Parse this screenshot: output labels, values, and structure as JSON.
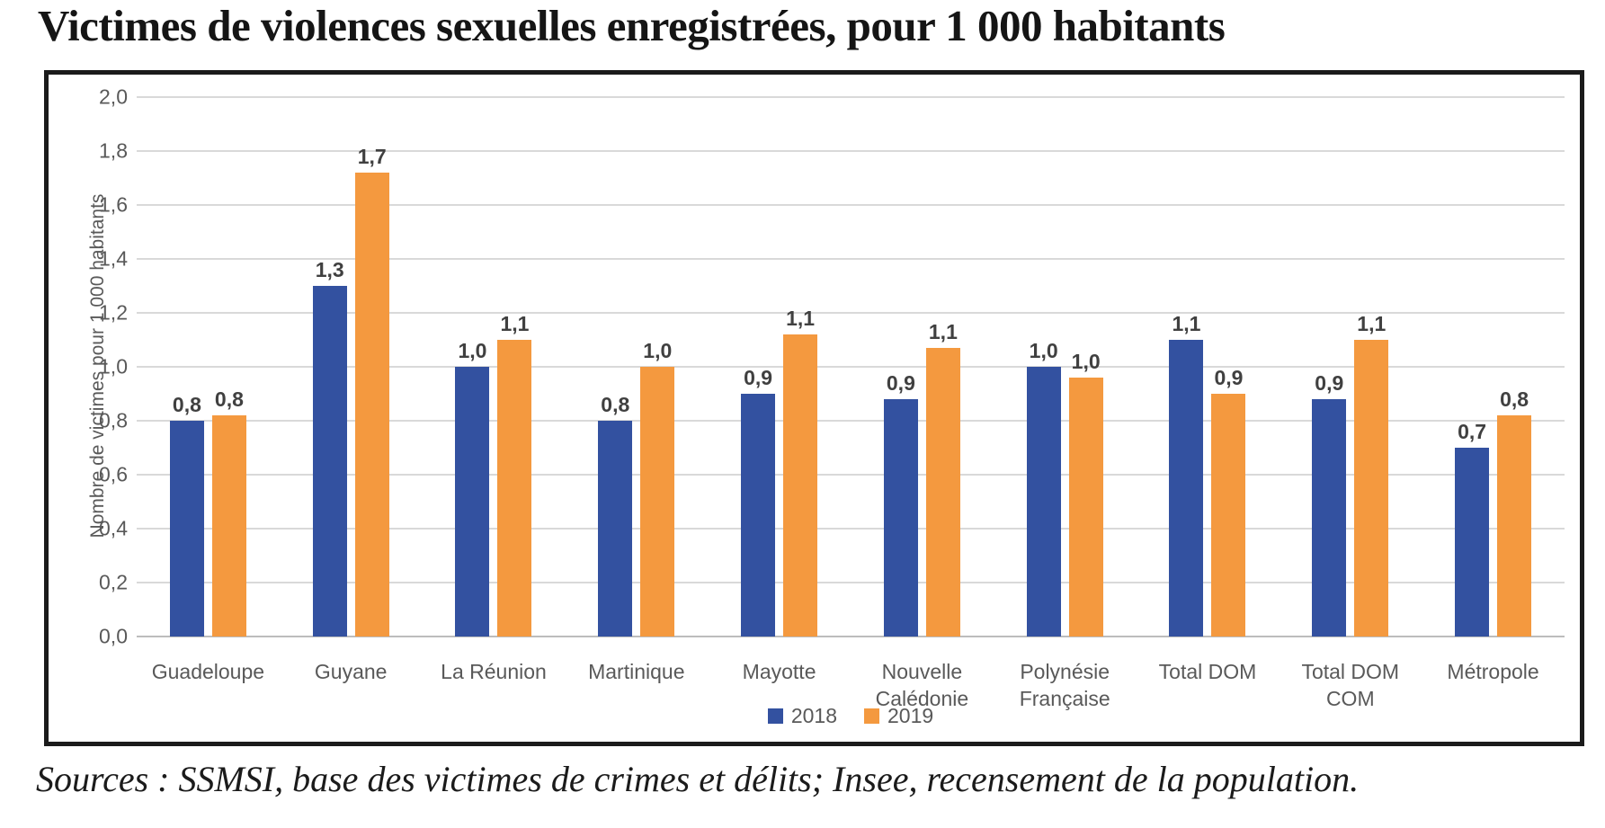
{
  "page": {
    "title": "Victimes de violences sexuelles enregistrées, pour 1 000 habitants",
    "source": "Sources : SSMSI, base des victimes de crimes et délits; Insee, recensement de la population."
  },
  "colors": {
    "series_2018": "#3351a0",
    "series_2019": "#f4993f",
    "gridline": "#d9d9d9",
    "axis_text": "#595959",
    "data_label": "#404040",
    "border": "#1b1b1b"
  },
  "chart_data": {
    "type": "bar",
    "title": "Victimes de violences sexuelles enregistrées, pour 1 000 habitants",
    "xlabel": "",
    "ylabel": "Nombre de victimes pour 1 000 habitants",
    "ylim": [
      0.0,
      2.0
    ],
    "ytick_step": 0.2,
    "ytick_labels": [
      "2,0",
      "1,8",
      "1,6",
      "1,4",
      "1,2",
      "1,0",
      "0,8",
      "0,6",
      "0,4",
      "0,2",
      "0,0"
    ],
    "grid": true,
    "legend_position": "bottom",
    "categories": [
      "Guadeloupe",
      "Guyane",
      "La Réunion",
      "Martinique",
      "Mayotte",
      "Nouvelle Calédonie",
      "Polynésie Française",
      "Total DOM",
      "Total DOM COM",
      "Métropole"
    ],
    "series": [
      {
        "name": "2018",
        "color": "#3351a0",
        "values": [
          0.8,
          1.3,
          1.0,
          0.8,
          0.9,
          0.88,
          1.0,
          1.1,
          0.88,
          0.7
        ],
        "labels": [
          "0,8",
          "1,3",
          "1,0",
          "0,8",
          "0,9",
          "0,9",
          "1,0",
          "1,1",
          "0,9",
          "0,7"
        ]
      },
      {
        "name": "2019",
        "color": "#f4993f",
        "values": [
          0.82,
          1.72,
          1.1,
          1.0,
          1.12,
          1.07,
          0.96,
          0.9,
          1.1,
          0.82
        ],
        "labels": [
          "0,8",
          "1,7",
          "1,1",
          "1,0",
          "1,1",
          "1,1",
          "1,0",
          "0,9",
          "1,1",
          "0,8"
        ]
      }
    ]
  }
}
